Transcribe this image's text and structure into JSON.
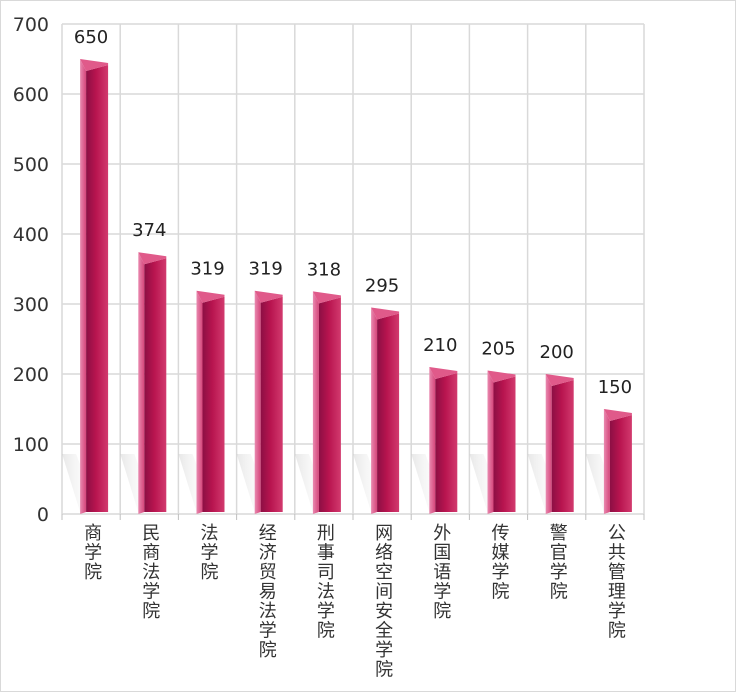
{
  "chart_data": {
    "type": "bar",
    "categories": [
      "商学院",
      "民商法学院",
      "法学院",
      "经济贸易法学院",
      "刑事司法学院",
      "网络空间安全学院",
      "外国语学院",
      "传媒学院",
      "警官学院",
      "公共管理学院"
    ],
    "values": [
      650,
      374,
      319,
      319,
      318,
      295,
      210,
      205,
      200,
      150
    ],
    "value_labels": [
      "650",
      "374",
      "319",
      "319",
      "318",
      "295",
      "210",
      "205",
      "200",
      "150"
    ],
    "y_ticks": [
      "0",
      "100",
      "200",
      "300",
      "400",
      "500",
      "600",
      "700"
    ],
    "ylim": [
      0,
      700
    ],
    "title": "",
    "xlabel": "",
    "ylabel": "",
    "grid": true,
    "legend": "none",
    "colors": {
      "bar_front": "#c2185b",
      "bar_side": "#8e1046",
      "bar_top": "#e05a8a",
      "grid": "#d9d9d9"
    }
  }
}
